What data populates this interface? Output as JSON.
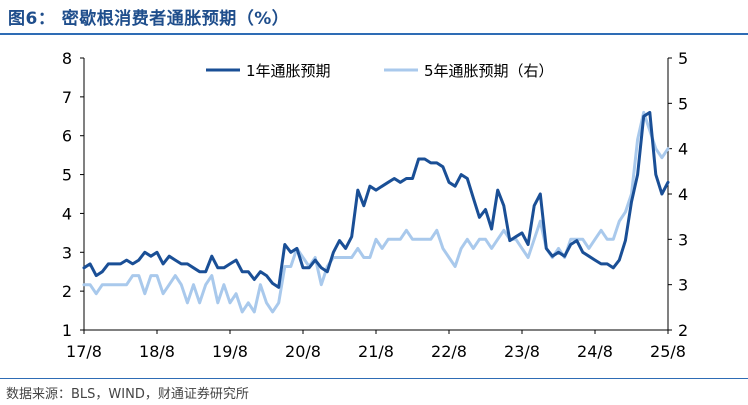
{
  "title": "图6： 密歇根消费者通胀预期（%）",
  "source": "数据来源：BLS，WIND，财通证券研究所",
  "colors": {
    "series1": "#1a4f96",
    "series2": "#a9c9ec",
    "rule": "#2e6cb5",
    "title": "#1f4e8c"
  },
  "chart_data": {
    "type": "line",
    "x_ticks": [
      "17/8",
      "18/8",
      "19/8",
      "20/8",
      "21/8",
      "22/8",
      "23/8",
      "24/8",
      "25/8"
    ],
    "x_range": [
      "2017-08",
      "2025-08"
    ],
    "y_left": {
      "ticks": [
        "1",
        "2",
        "3",
        "4",
        "5",
        "6",
        "7",
        "8"
      ],
      "ylim": [
        1,
        8
      ]
    },
    "y_right": {
      "ticks": [
        "2",
        "3",
        "3",
        "4",
        "4",
        "5",
        "5"
      ],
      "ylim": [
        2,
        5
      ]
    },
    "legend": {
      "position": "top-center"
    },
    "series": [
      {
        "name": "1年通胀预期",
        "axis": "left",
        "x": [
          "2017-08",
          "2017-09",
          "2017-10",
          "2017-11",
          "2017-12",
          "2018-01",
          "2018-02",
          "2018-03",
          "2018-04",
          "2018-05",
          "2018-06",
          "2018-07",
          "2018-08",
          "2018-09",
          "2018-10",
          "2018-11",
          "2018-12",
          "2019-01",
          "2019-02",
          "2019-03",
          "2019-04",
          "2019-05",
          "2019-06",
          "2019-07",
          "2019-08",
          "2019-09",
          "2019-10",
          "2019-11",
          "2019-12",
          "2020-01",
          "2020-02",
          "2020-03",
          "2020-04",
          "2020-05",
          "2020-06",
          "2020-07",
          "2020-08",
          "2020-09",
          "2020-10",
          "2020-11",
          "2020-12",
          "2021-01",
          "2021-02",
          "2021-03",
          "2021-04",
          "2021-05",
          "2021-06",
          "2021-07",
          "2021-08",
          "2021-09",
          "2021-10",
          "2021-11",
          "2021-12",
          "2022-01",
          "2022-02",
          "2022-03",
          "2022-04",
          "2022-05",
          "2022-06",
          "2022-07",
          "2022-08",
          "2022-09",
          "2022-10",
          "2022-11",
          "2022-12",
          "2023-01",
          "2023-02",
          "2023-03",
          "2023-04",
          "2023-05",
          "2023-06",
          "2023-07",
          "2023-08",
          "2023-09",
          "2023-10",
          "2023-11",
          "2023-12",
          "2024-01",
          "2024-02",
          "2024-03",
          "2024-04",
          "2024-05",
          "2024-06",
          "2024-07",
          "2024-08",
          "2024-09",
          "2024-10",
          "2024-11",
          "2024-12",
          "2025-01",
          "2025-02",
          "2025-03",
          "2025-04",
          "2025-05",
          "2025-06",
          "2025-07",
          "2025-08"
        ],
        "values": [
          2.6,
          2.7,
          2.4,
          2.5,
          2.7,
          2.7,
          2.7,
          2.8,
          2.7,
          2.8,
          3.0,
          2.9,
          3.0,
          2.7,
          2.9,
          2.8,
          2.7,
          2.7,
          2.6,
          2.5,
          2.5,
          2.9,
          2.6,
          2.6,
          2.7,
          2.8,
          2.5,
          2.5,
          2.3,
          2.5,
          2.4,
          2.2,
          2.1,
          3.2,
          3.0,
          3.1,
          2.6,
          2.6,
          2.8,
          2.6,
          2.5,
          3.0,
          3.3,
          3.1,
          3.4,
          4.6,
          4.2,
          4.7,
          4.6,
          4.7,
          4.8,
          4.9,
          4.8,
          4.9,
          4.9,
          5.4,
          5.4,
          5.3,
          5.3,
          5.2,
          4.8,
          4.7,
          5.0,
          4.9,
          4.4,
          3.9,
          4.1,
          3.6,
          4.6,
          4.2,
          3.3,
          3.4,
          3.5,
          3.2,
          4.2,
          4.5,
          3.1,
          2.9,
          3.0,
          2.9,
          3.2,
          3.3,
          3.0,
          2.9,
          2.8,
          2.7,
          2.7,
          2.6,
          2.8,
          3.3,
          4.3,
          5.0,
          6.5,
          6.6,
          5.0,
          4.5,
          4.8
        ]
      },
      {
        "name": "5年通胀预期（右）",
        "axis": "right",
        "x": [
          "2017-08",
          "2017-09",
          "2017-10",
          "2017-11",
          "2017-12",
          "2018-01",
          "2018-02",
          "2018-03",
          "2018-04",
          "2018-05",
          "2018-06",
          "2018-07",
          "2018-08",
          "2018-09",
          "2018-10",
          "2018-11",
          "2018-12",
          "2019-01",
          "2019-02",
          "2019-03",
          "2019-04",
          "2019-05",
          "2019-06",
          "2019-07",
          "2019-08",
          "2019-09",
          "2019-10",
          "2019-11",
          "2019-12",
          "2020-01",
          "2020-02",
          "2020-03",
          "2020-04",
          "2020-05",
          "2020-06",
          "2020-07",
          "2020-08",
          "2020-09",
          "2020-10",
          "2020-11",
          "2020-12",
          "2021-01",
          "2021-02",
          "2021-03",
          "2021-04",
          "2021-05",
          "2021-06",
          "2021-07",
          "2021-08",
          "2021-09",
          "2021-10",
          "2021-11",
          "2021-12",
          "2022-01",
          "2022-02",
          "2022-03",
          "2022-04",
          "2022-05",
          "2022-06",
          "2022-07",
          "2022-08",
          "2022-09",
          "2022-10",
          "2022-11",
          "2022-12",
          "2023-01",
          "2023-02",
          "2023-03",
          "2023-04",
          "2023-05",
          "2023-06",
          "2023-07",
          "2023-08",
          "2023-09",
          "2023-10",
          "2023-11",
          "2023-12",
          "2024-01",
          "2024-02",
          "2024-03",
          "2024-04",
          "2024-05",
          "2024-06",
          "2024-07",
          "2024-08",
          "2024-09",
          "2024-10",
          "2024-11",
          "2024-12",
          "2025-01",
          "2025-02",
          "2025-03",
          "2025-04",
          "2025-05",
          "2025-06",
          "2025-07",
          "2025-08"
        ],
        "values": [
          2.5,
          2.5,
          2.4,
          2.5,
          2.5,
          2.5,
          2.5,
          2.5,
          2.6,
          2.6,
          2.4,
          2.6,
          2.6,
          2.4,
          2.5,
          2.6,
          2.5,
          2.3,
          2.5,
          2.3,
          2.5,
          2.6,
          2.3,
          2.5,
          2.3,
          2.4,
          2.2,
          2.3,
          2.2,
          2.5,
          2.3,
          2.2,
          2.3,
          2.7,
          2.7,
          2.9,
          2.8,
          2.7,
          2.8,
          2.5,
          2.7,
          2.8,
          2.8,
          2.8,
          2.8,
          2.9,
          2.8,
          2.8,
          3.0,
          2.9,
          3.0,
          3.0,
          3.0,
          3.1,
          3.0,
          3.0,
          3.0,
          3.0,
          3.1,
          2.9,
          2.8,
          2.7,
          2.9,
          3.0,
          2.9,
          3.0,
          3.0,
          2.9,
          3.0,
          3.1,
          3.0,
          3.0,
          2.9,
          2.8,
          3.0,
          3.2,
          2.9,
          2.8,
          2.9,
          2.8,
          3.0,
          3.0,
          3.0,
          2.9,
          3.0,
          3.1,
          3.0,
          3.0,
          3.2,
          3.3,
          3.5,
          4.1,
          4.4,
          4.2,
          4.0,
          3.9,
          4.0
        ]
      }
    ]
  }
}
